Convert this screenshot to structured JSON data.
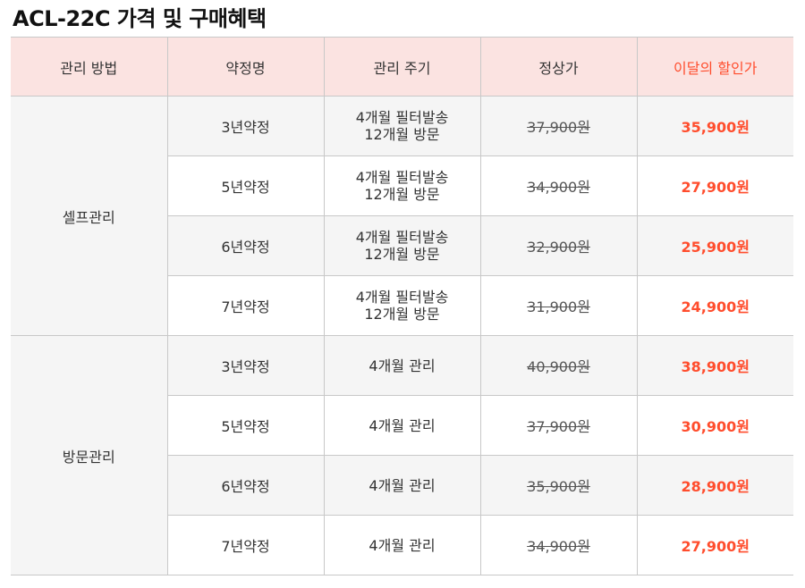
{
  "title": "ACL-22C 가격 및 구매혜택",
  "table": {
    "headers": {
      "method": "관리 방법",
      "contract": "약정명",
      "cycle": "관리 주기",
      "regular": "정상가",
      "discount": "이달의 할인가"
    },
    "groups": [
      {
        "method": "셀프관리",
        "rows": [
          {
            "contract": "3년약정",
            "cycle": [
              "4개월 필터발송",
              "12개월 방문"
            ],
            "regular": "37,900원",
            "discount": "35,900원"
          },
          {
            "contract": "5년약정",
            "cycle": [
              "4개월 필터발송",
              "12개월 방문"
            ],
            "regular": "34,900원",
            "discount": "27,900원"
          },
          {
            "contract": "6년약정",
            "cycle": [
              "4개월 필터발송",
              "12개월 방문"
            ],
            "regular": "32,900원",
            "discount": "25,900원"
          },
          {
            "contract": "7년약정",
            "cycle": [
              "4개월 필터발송",
              "12개월 방문"
            ],
            "regular": "31,900원",
            "discount": "24,900원"
          }
        ]
      },
      {
        "method": "방문관리",
        "rows": [
          {
            "contract": "3년약정",
            "cycle": [
              "4개월 관리"
            ],
            "regular": "40,900원",
            "discount": "38,900원"
          },
          {
            "contract": "5년약정",
            "cycle": [
              "4개월 관리"
            ],
            "regular": "37,900원",
            "discount": "30,900원"
          },
          {
            "contract": "6년약정",
            "cycle": [
              "4개월 관리"
            ],
            "regular": "35,900원",
            "discount": "28,900원"
          },
          {
            "contract": "7년약정",
            "cycle": [
              "4개월 관리"
            ],
            "regular": "34,900원",
            "discount": "27,900원"
          }
        ]
      }
    ]
  },
  "colors": {
    "header_bg": "#fbe3e1",
    "discount": "#ff4d2d",
    "shaded_row": "#f5f5f5",
    "border": "#c8c8c8"
  }
}
